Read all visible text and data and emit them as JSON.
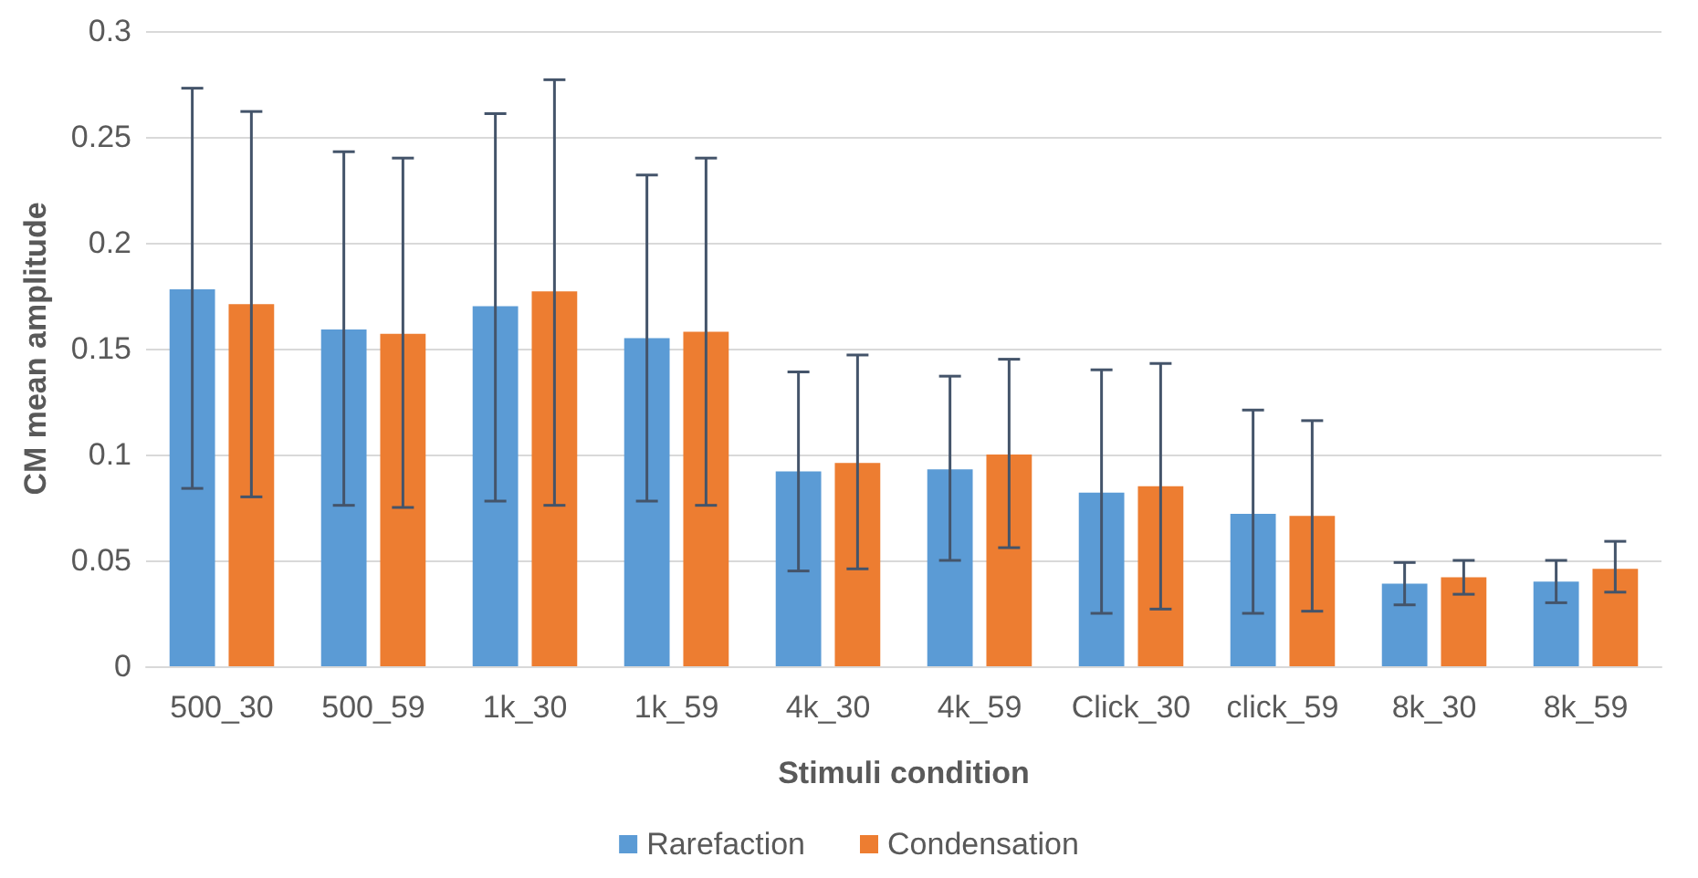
{
  "chart_data": {
    "type": "bar",
    "xlabel": "Stimuli condition",
    "ylabel": "CM mean amplitude",
    "categories": [
      "500_30",
      "500_59",
      "1k_30",
      "1k_59",
      "4k_30",
      "4k_59",
      "Click_30",
      "click_59",
      "8k_30",
      "8k_59"
    ],
    "series": [
      {
        "name": "Rarefaction",
        "color": "#5b9bd5",
        "values": [
          0.178,
          0.159,
          0.17,
          0.155,
          0.092,
          0.093,
          0.082,
          0.072,
          0.039,
          0.04
        ],
        "errors": [
          [
            0.084,
            0.273
          ],
          [
            0.076,
            0.243
          ],
          [
            0.078,
            0.261
          ],
          [
            0.078,
            0.232
          ],
          [
            0.045,
            0.139
          ],
          [
            0.05,
            0.137
          ],
          [
            0.025,
            0.14
          ],
          [
            0.025,
            0.121
          ],
          [
            0.029,
            0.049
          ],
          [
            0.03,
            0.05
          ]
        ]
      },
      {
        "name": "Condensation",
        "color": "#ed7d31",
        "values": [
          0.171,
          0.157,
          0.177,
          0.158,
          0.096,
          0.1,
          0.085,
          0.071,
          0.042,
          0.046
        ],
        "errors": [
          [
            0.08,
            0.262
          ],
          [
            0.075,
            0.24
          ],
          [
            0.076,
            0.277
          ],
          [
            0.076,
            0.24
          ],
          [
            0.046,
            0.147
          ],
          [
            0.056,
            0.145
          ],
          [
            0.027,
            0.143
          ],
          [
            0.026,
            0.116
          ],
          [
            0.034,
            0.05
          ],
          [
            0.035,
            0.059
          ]
        ]
      }
    ],
    "ylim": [
      0,
      0.3
    ],
    "yticks": [
      0,
      0.05,
      0.1,
      0.15,
      0.2,
      0.25,
      0.3
    ],
    "grid": "y",
    "legend": "bottom"
  }
}
